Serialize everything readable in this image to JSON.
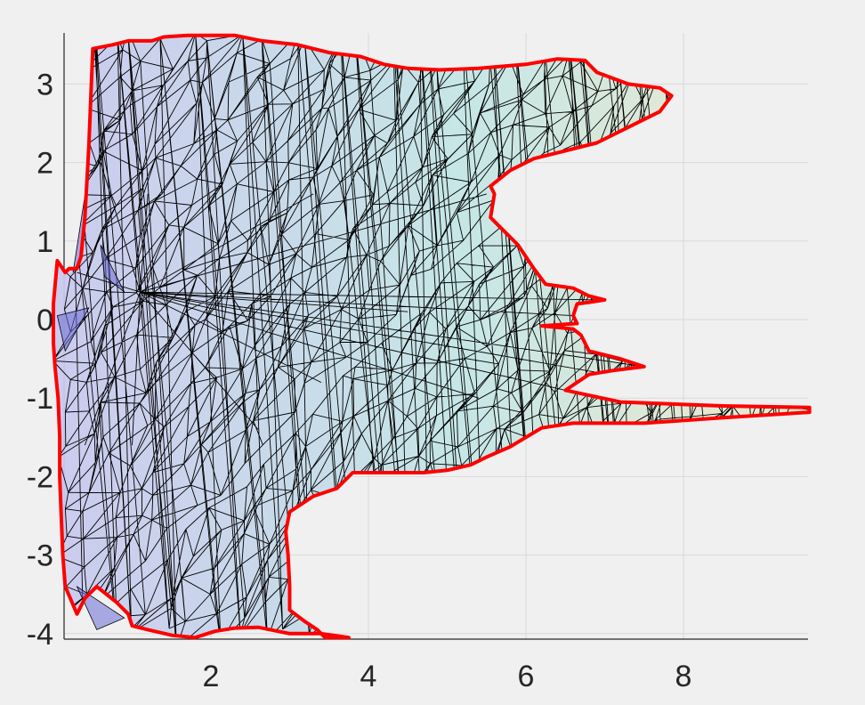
{
  "chart_data": {
    "type": "scatter",
    "subtype": "triangulated-mesh",
    "title": "",
    "xlabel": "",
    "ylabel": "",
    "xlim": [
      0,
      9.6
    ],
    "ylim": [
      -4.1,
      3.65
    ],
    "xticks": [
      2,
      4,
      6,
      8
    ],
    "yticks": [
      3,
      2,
      1,
      0,
      -1,
      -2,
      -3,
      -4
    ],
    "xtick_labels": [
      "2",
      "4",
      "6",
      "8"
    ],
    "ytick_labels": [
      "3",
      "2",
      "1",
      "0",
      "-1",
      "-2",
      "-3",
      "-4"
    ],
    "grid": true,
    "colormap": {
      "low": "#c9c9ee",
      "mid": "#c4e6e6",
      "high": "#f1e8c9"
    },
    "boundary_color": "#ff0000",
    "boundary": [
      [
        0.5,
        3.45
      ],
      [
        0.75,
        3.5
      ],
      [
        0.95,
        3.55
      ],
      [
        1.25,
        3.55
      ],
      [
        1.4,
        3.6
      ],
      [
        1.7,
        3.62
      ],
      [
        2.3,
        3.62
      ],
      [
        2.65,
        3.55
      ],
      [
        3.1,
        3.5
      ],
      [
        3.5,
        3.4
      ],
      [
        3.9,
        3.35
      ],
      [
        4.2,
        3.25
      ],
      [
        4.5,
        3.2
      ],
      [
        4.9,
        3.18
      ],
      [
        5.4,
        3.2
      ],
      [
        6.0,
        3.25
      ],
      [
        6.4,
        3.32
      ],
      [
        6.75,
        3.3
      ],
      [
        6.9,
        3.15
      ],
      [
        7.3,
        3.0
      ],
      [
        7.7,
        2.95
      ],
      [
        7.85,
        2.85
      ],
      [
        7.7,
        2.65
      ],
      [
        7.3,
        2.45
      ],
      [
        6.9,
        2.25
      ],
      [
        6.5,
        2.15
      ],
      [
        6.1,
        2.05
      ],
      [
        5.8,
        1.9
      ],
      [
        5.55,
        1.7
      ],
      [
        5.6,
        1.6
      ],
      [
        5.55,
        1.3
      ],
      [
        5.65,
        1.2
      ],
      [
        5.9,
        0.95
      ],
      [
        6.1,
        0.65
      ],
      [
        6.25,
        0.45
      ],
      [
        6.6,
        0.4
      ],
      [
        6.8,
        0.3
      ],
      [
        7.0,
        0.25
      ],
      [
        6.8,
        0.22
      ],
      [
        6.65,
        0.2
      ],
      [
        6.6,
        0.05
      ],
      [
        6.65,
        -0.05
      ],
      [
        6.2,
        -0.08
      ],
      [
        6.6,
        -0.12
      ],
      [
        6.7,
        -0.2
      ],
      [
        6.8,
        -0.4
      ],
      [
        7.2,
        -0.5
      ],
      [
        7.5,
        -0.6
      ],
      [
        7.1,
        -0.65
      ],
      [
        6.8,
        -0.7
      ],
      [
        6.5,
        -0.9
      ],
      [
        7.2,
        -1.05
      ],
      [
        8.5,
        -1.1
      ],
      [
        9.6,
        -1.12
      ],
      [
        9.6,
        -1.18
      ],
      [
        8.5,
        -1.25
      ],
      [
        7.5,
        -1.32
      ],
      [
        6.6,
        -1.32
      ],
      [
        6.2,
        -1.38
      ],
      [
        5.8,
        -1.62
      ],
      [
        5.5,
        -1.75
      ],
      [
        5.3,
        -1.85
      ],
      [
        5.0,
        -1.92
      ],
      [
        4.7,
        -1.95
      ],
      [
        4.3,
        -1.95
      ],
      [
        3.8,
        -1.95
      ],
      [
        3.6,
        -2.15
      ],
      [
        3.3,
        -2.25
      ],
      [
        3.0,
        -2.45
      ],
      [
        2.95,
        -2.7
      ],
      [
        2.98,
        -3.0
      ],
      [
        3.0,
        -3.4
      ],
      [
        3.0,
        -3.7
      ],
      [
        3.2,
        -3.85
      ],
      [
        3.35,
        -3.95
      ],
      [
        3.45,
        -4.05
      ],
      [
        3.75,
        -4.05
      ],
      [
        3.4,
        -4.0
      ],
      [
        3.0,
        -4.0
      ],
      [
        2.6,
        -3.92
      ],
      [
        2.3,
        -3.93
      ],
      [
        2.05,
        -3.97
      ],
      [
        1.8,
        -4.05
      ],
      [
        1.5,
        -4.02
      ],
      [
        1.2,
        -3.95
      ],
      [
        1.0,
        -3.9
      ],
      [
        0.95,
        -3.75
      ],
      [
        0.8,
        -3.6
      ],
      [
        0.55,
        -3.4
      ],
      [
        0.4,
        -3.55
      ],
      [
        0.3,
        -3.75
      ],
      [
        0.15,
        -3.4
      ],
      [
        0.12,
        -3.0
      ],
      [
        0.1,
        -2.5
      ],
      [
        0.08,
        -2.0
      ],
      [
        0.08,
        -1.5
      ],
      [
        0.06,
        -1.0
      ],
      [
        0.02,
        -0.6
      ],
      [
        0,
        -0.3
      ],
      [
        0,
        0.2
      ],
      [
        0.05,
        0.75
      ],
      [
        0.15,
        0.6
      ],
      [
        0.2,
        0.65
      ],
      [
        0.3,
        0.65
      ],
      [
        0.35,
        0.8
      ],
      [
        0.4,
        1.3
      ],
      [
        0.45,
        2.2
      ],
      [
        0.5,
        3.45
      ]
    ]
  }
}
